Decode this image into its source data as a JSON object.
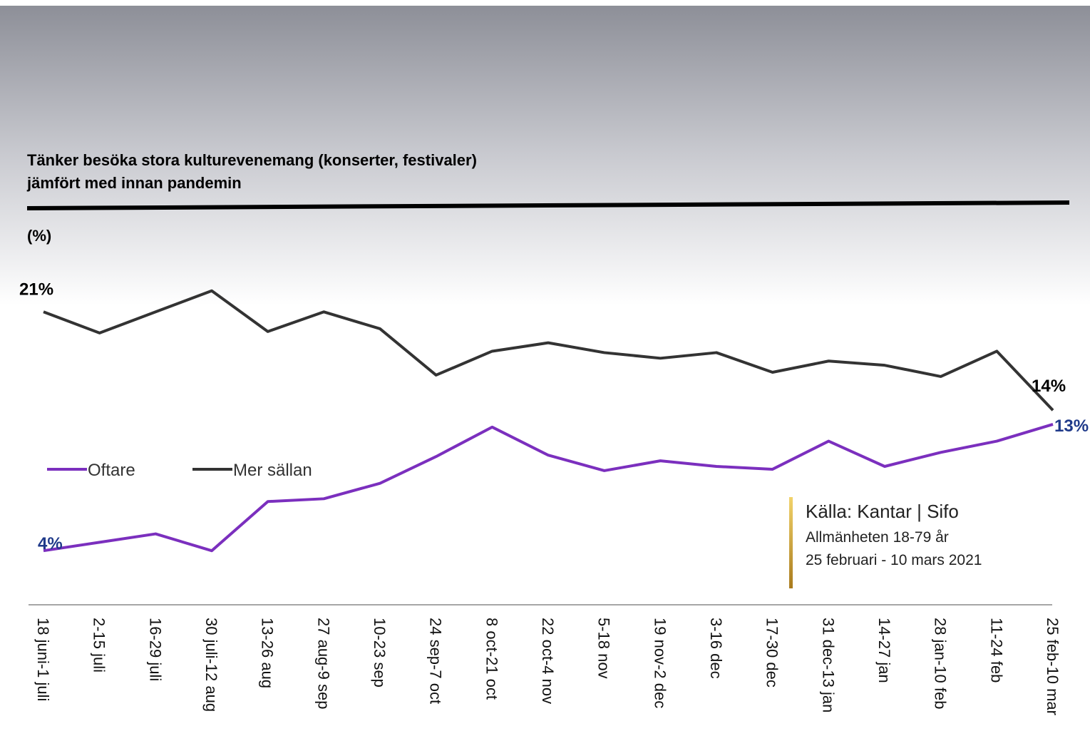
{
  "chart_data": {
    "type": "line",
    "title": [
      "Tänker besöka stora kulturevenemang (konserter, festivaler)",
      "jämfört med innan pandemin"
    ],
    "subtitle": "(%)",
    "categories": [
      "18 juni-1 juli",
      "2-15 juli",
      "16-29 juli",
      "30 juli-12 aug",
      "13-26 aug",
      "27 aug-9 sep",
      "10-23 sep",
      "24 sep-7 oct",
      "8 oct-21 oct",
      "22 oct-4 nov",
      "5-18 nov",
      "19 nov-2 dec",
      "3-16 dec",
      "17-30 dec",
      "31 dec-13 jan",
      "14-27 jan",
      "28 jan-10 feb",
      "11-24 feb",
      "25 feb-10 mar"
    ],
    "series": [
      {
        "name": "Oftare",
        "color": "#7b2fbe",
        "values": [
          4,
          4.6,
          5.2,
          4,
          7.5,
          7.7,
          8.8,
          10.7,
          12.8,
          10.8,
          9.7,
          10.4,
          10,
          9.8,
          11.8,
          10,
          11,
          11.8,
          13
        ],
        "value_labels": [
          "4%",
          null,
          null,
          null,
          null,
          null,
          null,
          null,
          null,
          null,
          null,
          null,
          null,
          null,
          null,
          null,
          null,
          null,
          "13%"
        ],
        "label_color": "#1f3a8a"
      },
      {
        "name": "Mer sällan",
        "color": "#333333",
        "values": [
          21,
          19.5,
          21,
          22.5,
          19.6,
          21,
          19.8,
          16.5,
          18.2,
          18.8,
          18.1,
          17.7,
          18.1,
          16.7,
          17.5,
          17.2,
          16.4,
          18.2,
          14
        ],
        "value_labels": [
          "21%",
          null,
          null,
          null,
          null,
          null,
          null,
          null,
          null,
          null,
          null,
          null,
          null,
          null,
          null,
          null,
          null,
          null,
          "14%"
        ],
        "label_color": "#000000"
      }
    ],
    "source": [
      "Källa: Kantar | Sifo",
      "Allmänheten 18-79 år",
      "25 februari - 10 mars 2021"
    ]
  }
}
